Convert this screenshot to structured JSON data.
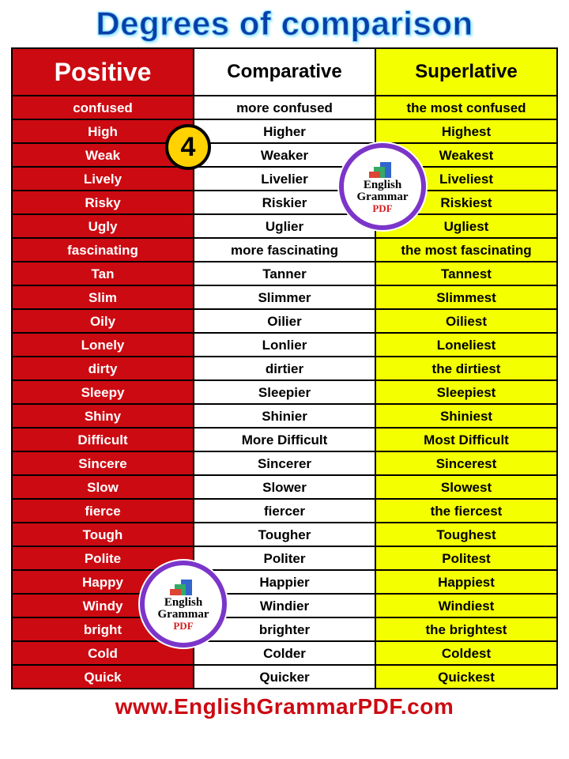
{
  "title": "Degrees of comparison",
  "columns": [
    "Positive",
    "Comparative",
    "Superlative"
  ],
  "colors": {
    "positive_bg": "#cc0a12",
    "comparative_bg": "#ffffff",
    "superlative_bg": "#f4ff00",
    "title_color": "#0a3ea8",
    "title_glow": "#b4f2ff",
    "border": "#000000",
    "footer_color": "#cc0a12",
    "badge_fill": "#ffd200",
    "badge_ring": "#7c35c9"
  },
  "badge_number": "4",
  "logo_lines": [
    "English",
    "Grammar",
    "PDF"
  ],
  "footer": "www.EnglishGrammarPDF.com",
  "rows": [
    [
      "confused",
      "more confused",
      "the most confused"
    ],
    [
      "High",
      "Higher",
      "Highest"
    ],
    [
      "Weak",
      "Weaker",
      "Weakest"
    ],
    [
      "Lively",
      "Livelier",
      "Liveliest"
    ],
    [
      "Risky",
      "Riskier",
      "Riskiest"
    ],
    [
      "Ugly",
      "Uglier",
      "Ugliest"
    ],
    [
      "fascinating",
      "more fascinating",
      "the most fascinating"
    ],
    [
      "Tan",
      "Tanner",
      "Tannest"
    ],
    [
      "Slim",
      "Slimmer",
      "Slimmest"
    ],
    [
      "Oily",
      "Oilier",
      "Oiliest"
    ],
    [
      "Lonely",
      "Lonlier",
      "Loneliest"
    ],
    [
      "dirty",
      "dirtier",
      "the dirtiest"
    ],
    [
      "Sleepy",
      "Sleepier",
      "Sleepiest"
    ],
    [
      "Shiny",
      "Shinier",
      "Shiniest"
    ],
    [
      "Difficult",
      "More Difficult",
      "Most Difficult"
    ],
    [
      "Sincere",
      "Sincerer",
      "Sincerest"
    ],
    [
      "Slow",
      "Slower",
      "Slowest"
    ],
    [
      "fierce",
      "fiercer",
      "the fiercest"
    ],
    [
      "Tough",
      "Tougher",
      "Toughest"
    ],
    [
      "Polite",
      "Politer",
      "Politest"
    ],
    [
      "Happy",
      "Happier",
      "Happiest"
    ],
    [
      "Windy",
      "Windier",
      "Windiest"
    ],
    [
      "bright",
      "brighter",
      "the brightest"
    ],
    [
      "Cold",
      "Colder",
      "Coldest"
    ],
    [
      "Quick",
      "Quicker",
      "Quickest"
    ]
  ]
}
